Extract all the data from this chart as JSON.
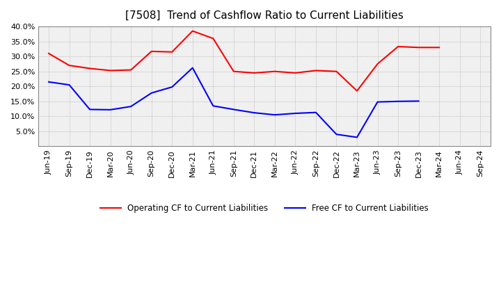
{
  "title": "[7508]  Trend of Cashflow Ratio to Current Liabilities",
  "x_labels": [
    "Jun-19",
    "Sep-19",
    "Dec-19",
    "Mar-20",
    "Jun-20",
    "Sep-20",
    "Dec-20",
    "Mar-21",
    "Jun-21",
    "Sep-21",
    "Dec-21",
    "Mar-22",
    "Jun-22",
    "Sep-22",
    "Dec-22",
    "Mar-23",
    "Jun-23",
    "Sep-23",
    "Dec-23",
    "Mar-24",
    "Jun-24",
    "Sep-24"
  ],
  "operating_cf": [
    0.31,
    0.27,
    0.26,
    0.253,
    0.255,
    0.317,
    0.315,
    0.385,
    0.36,
    0.25,
    0.245,
    0.25,
    0.245,
    0.253,
    0.25,
    0.185,
    0.275,
    0.333,
    0.33,
    0.33,
    null,
    null
  ],
  "free_cf": [
    0.215,
    0.205,
    0.123,
    0.122,
    0.133,
    0.178,
    0.198,
    0.262,
    0.135,
    0.123,
    0.112,
    0.105,
    0.11,
    0.113,
    0.04,
    0.03,
    0.148,
    0.15,
    0.151,
    null,
    null,
    null
  ],
  "operating_color": "#ff0000",
  "free_color": "#0000ff",
  "ylim": [
    0.0,
    0.4
  ],
  "yticks": [
    0.05,
    0.1,
    0.15,
    0.2,
    0.25,
    0.3,
    0.35,
    0.4
  ],
  "plot_bg_color": "#f0f0f0",
  "outer_bg_color": "#ffffff",
  "grid_color": "#888888",
  "title_fontsize": 11,
  "tick_fontsize": 8,
  "legend_labels": [
    "Operating CF to Current Liabilities",
    "Free CF to Current Liabilities"
  ]
}
